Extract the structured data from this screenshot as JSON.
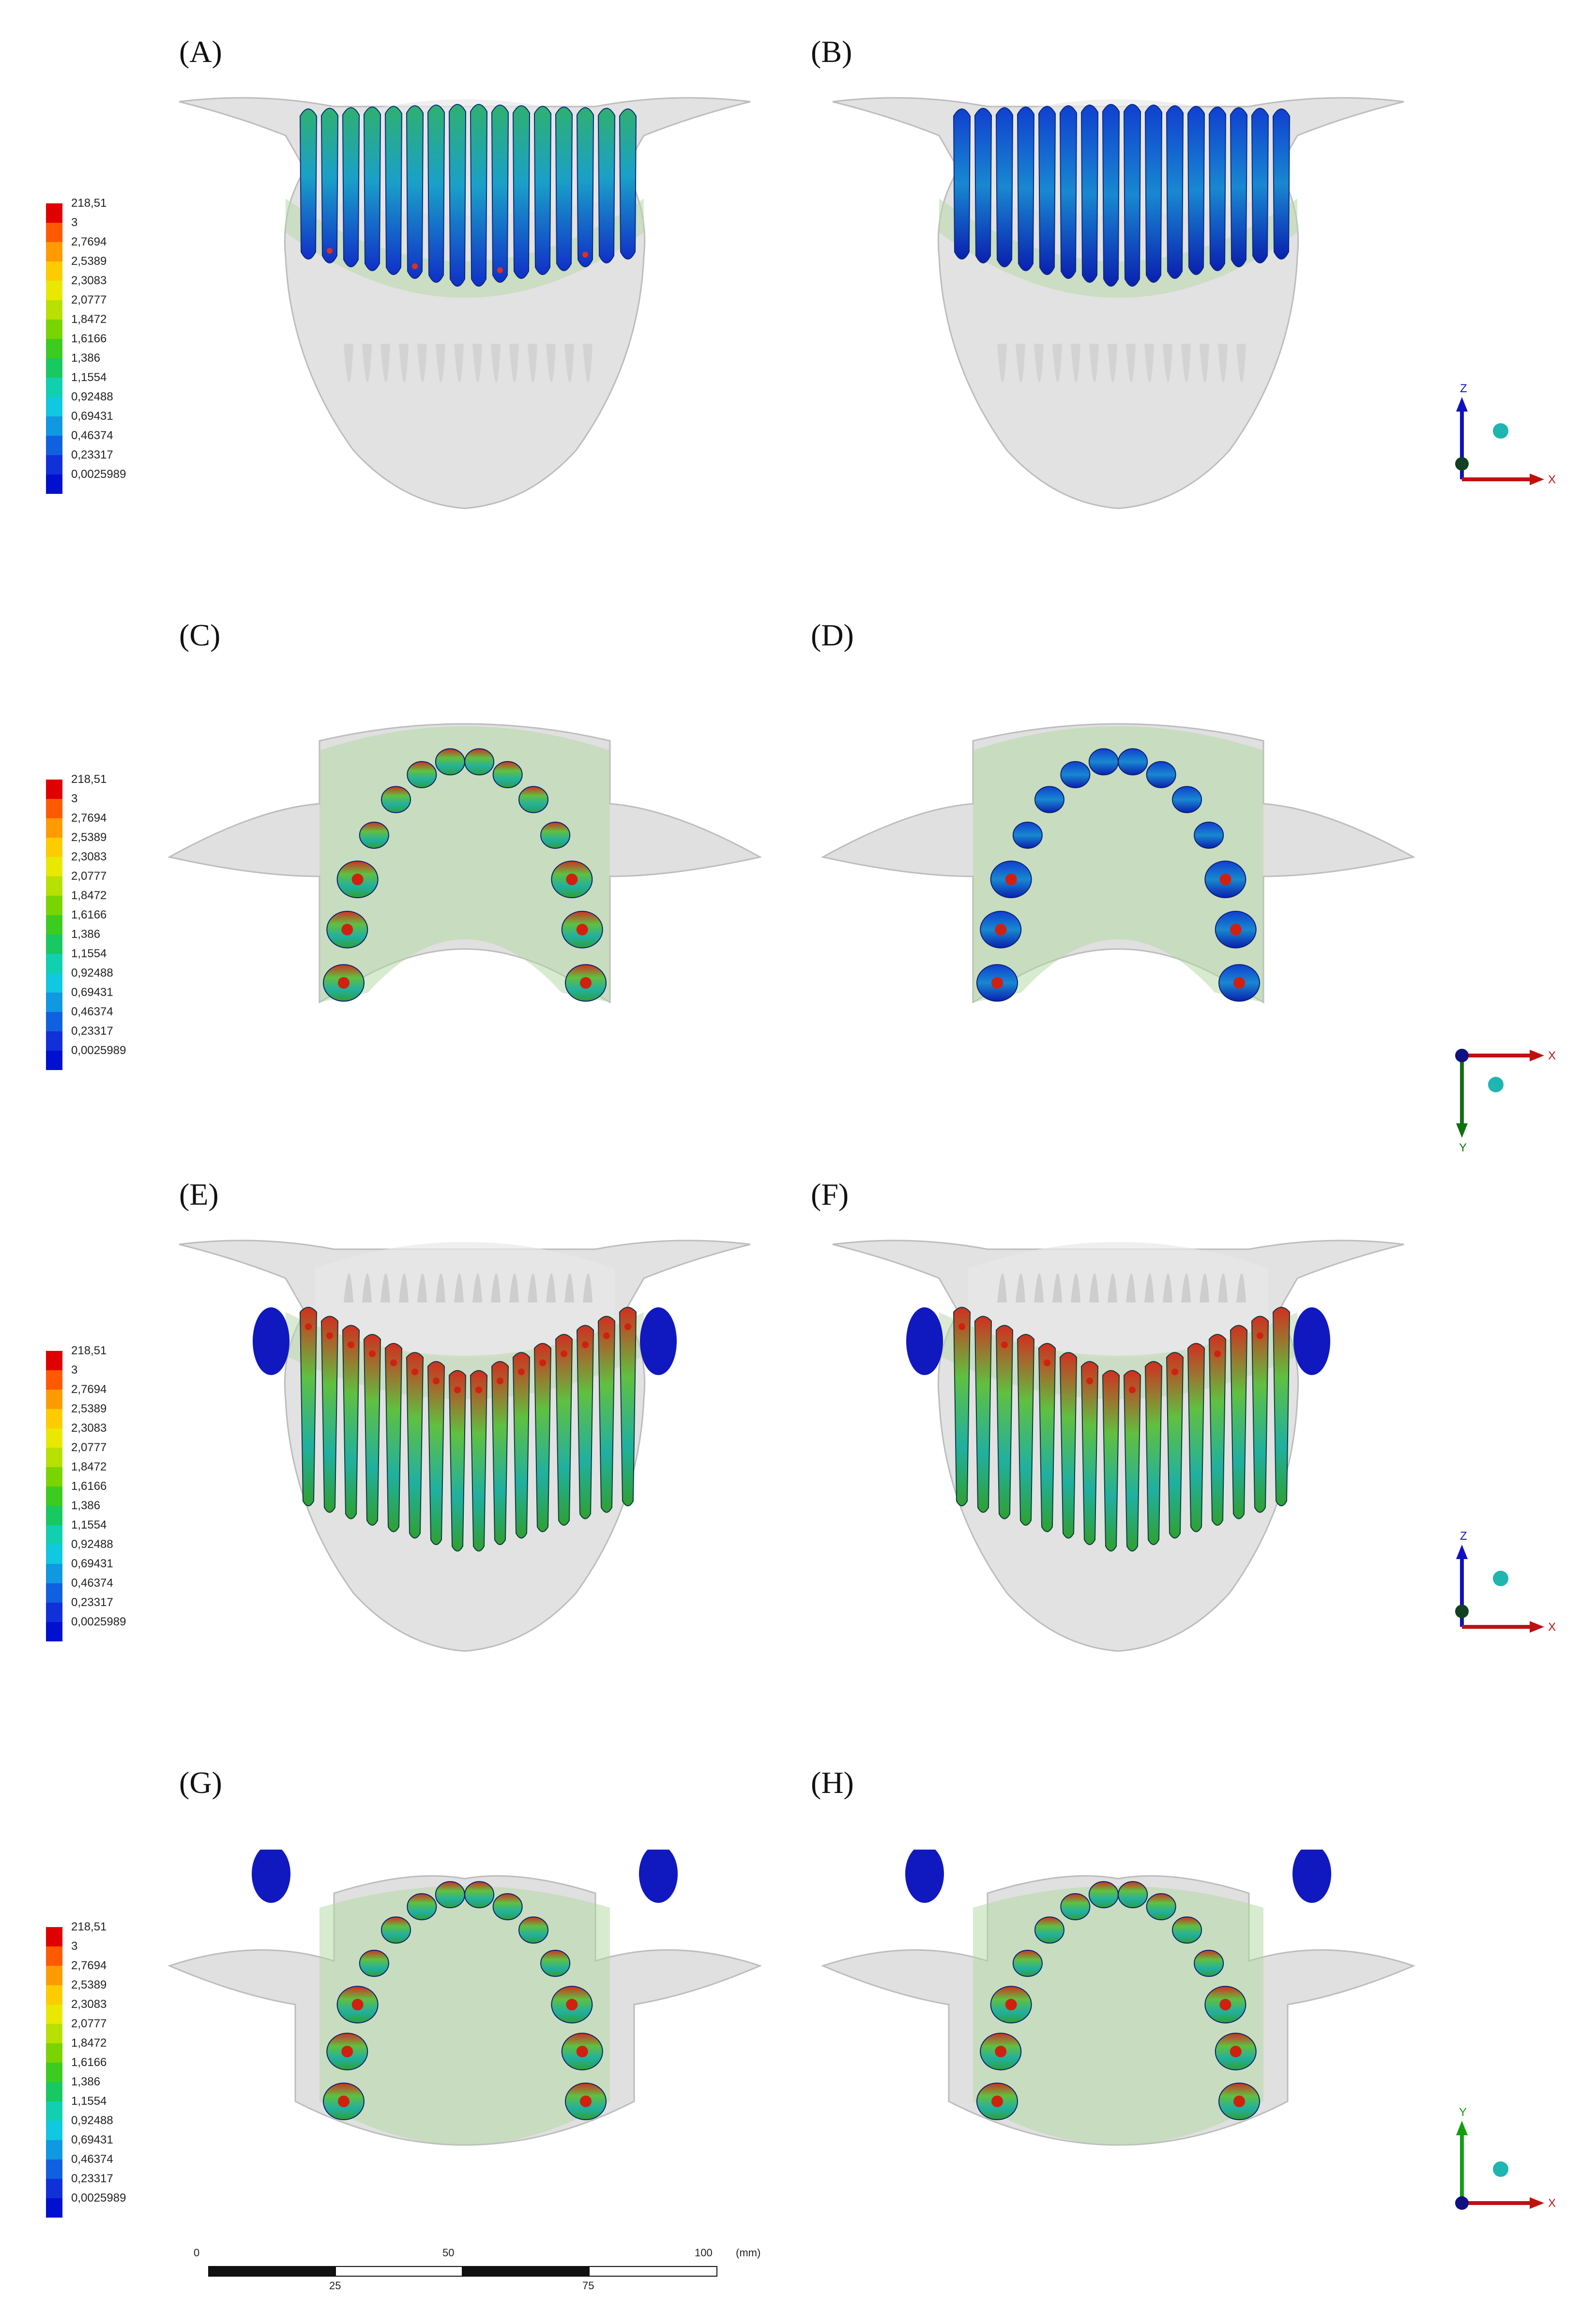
{
  "panels": [
    {
      "id": "A",
      "label": "(A)"
    },
    {
      "id": "B",
      "label": "(B)"
    },
    {
      "id": "C",
      "label": "(C)"
    },
    {
      "id": "D",
      "label": "(D)"
    },
    {
      "id": "E",
      "label": "(E)"
    },
    {
      "id": "F",
      "label": "(F)"
    },
    {
      "id": "G",
      "label": "(G)"
    },
    {
      "id": "H",
      "label": "(H)"
    }
  ],
  "legend": {
    "values": [
      "218,51",
      "3",
      "2,7694",
      "2,5389",
      "2,3083",
      "2,0777",
      "1,8472",
      "1,6166",
      "1,386",
      "1,1554",
      "0,92488",
      "0,69431",
      "0,46374",
      "0,23317",
      "0,0025989"
    ],
    "colors": [
      "#e00000",
      "#ff5a00",
      "#ff9a00",
      "#ffcc00",
      "#e8e800",
      "#b8e000",
      "#7ad400",
      "#3ccc20",
      "#18c860",
      "#10d0b0",
      "#10c8e0",
      "#1098e0",
      "#1060e0",
      "#1030d8",
      "#0010d0"
    ]
  },
  "axes_frontal": {
    "up": "Z",
    "right": "X",
    "up_color": "#1010c0",
    "right_color": "#c01010"
  },
  "axes_occlusal_c": {
    "down": "Y",
    "right": "X",
    "down_color": "#107010",
    "right_color": "#c01010"
  },
  "axes_occlusal_g": {
    "up": "Y",
    "right": "X",
    "up_color": "#10a010",
    "right_color": "#c01010"
  },
  "scalebar": {
    "top_ticks": [
      "0",
      "50",
      "100"
    ],
    "bottom_ticks": [
      "25",
      "75"
    ],
    "unit": "(mm)"
  }
}
